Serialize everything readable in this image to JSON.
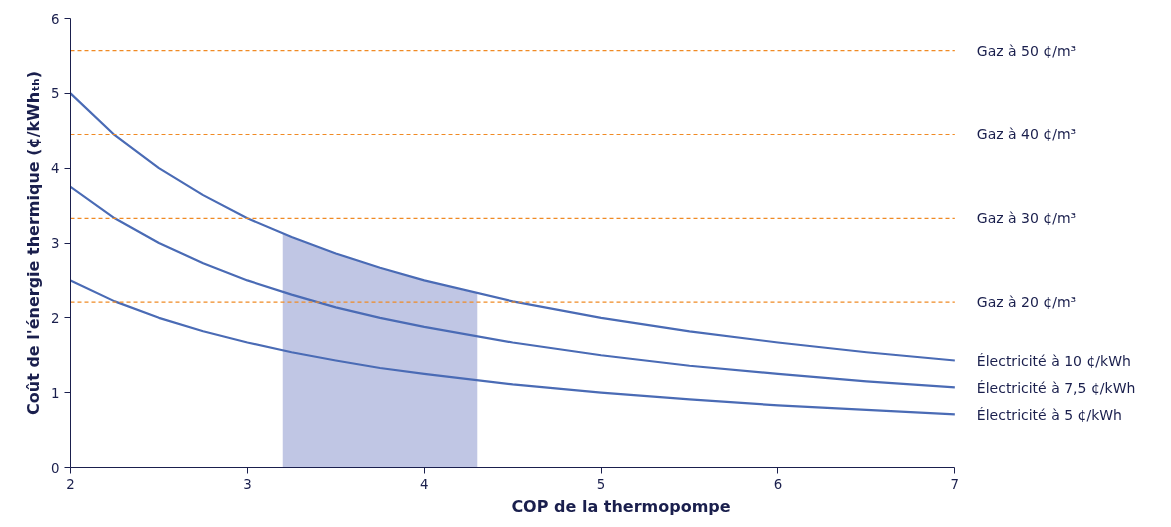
{
  "chart_data": {
    "type": "line",
    "xlabel": "COP de la thermopompe",
    "ylabel": "Coût de l'énergie thermique (¢/kWhₜₕ)",
    "xlim": [
      2,
      7
    ],
    "ylim": [
      0,
      6
    ],
    "xticks": [
      2,
      3,
      4,
      5,
      6,
      7
    ],
    "yticks": [
      0,
      1,
      2,
      3,
      4,
      5,
      6
    ],
    "grid": false,
    "marker": "none",
    "line_style": "solid",
    "x": [
      2,
      2.25,
      2.5,
      2.75,
      3,
      3.25,
      3.5,
      3.75,
      4,
      4.5,
      5,
      5.5,
      6,
      6.5,
      7
    ],
    "series": [
      {
        "type": "area",
        "color": "#c0c6e4",
        "x": [
          3.2,
          3.4,
          3.6,
          3.8,
          4.0,
          4.2,
          4.3
        ],
        "values": [
          3.12,
          2.94,
          2.78,
          2.63,
          2.5,
          2.38,
          2.33
        ]
      },
      {
        "name": "Électricité à 10 ¢/kWh",
        "color": "#4a6bb5",
        "values": [
          5,
          4.44,
          4,
          3.64,
          3.33,
          3.08,
          2.86,
          2.67,
          2.5,
          2.22,
          2,
          1.82,
          1.67,
          1.54,
          1.43
        ]
      },
      {
        "name": "Électricité à 7,5 ¢/kWh",
        "color": "#4a6bb5",
        "values": [
          3.75,
          3.33,
          3,
          2.73,
          2.5,
          2.31,
          2.14,
          2,
          1.88,
          1.67,
          1.5,
          1.36,
          1.25,
          1.15,
          1.07
        ]
      },
      {
        "name": "Électricité à 5 ¢/kWh",
        "color": "#4a6bb5",
        "values": [
          2.5,
          2.22,
          2,
          1.82,
          1.67,
          1.54,
          1.43,
          1.33,
          1.25,
          1.11,
          1,
          0.91,
          0.83,
          0.77,
          0.71
        ]
      }
    ],
    "ref_lines": [
      {
        "axis": "y",
        "value": 5.57,
        "label": "Gaz à 50 ¢/m³",
        "color": "#f08a24",
        "line_style": "dashed"
      },
      {
        "axis": "y",
        "value": 4.45,
        "label": "Gaz à 40 ¢/m³",
        "color": "#f08a24",
        "line_style": "dashed"
      },
      {
        "axis": "y",
        "value": 3.33,
        "label": "Gaz à 30 ¢/m³",
        "color": "#f08a24",
        "line_style": "dashed"
      },
      {
        "axis": "y",
        "value": 2.21,
        "label": "Gaz à 20 ¢/m³",
        "color": "#f08a24",
        "line_style": "dashed"
      }
    ]
  }
}
